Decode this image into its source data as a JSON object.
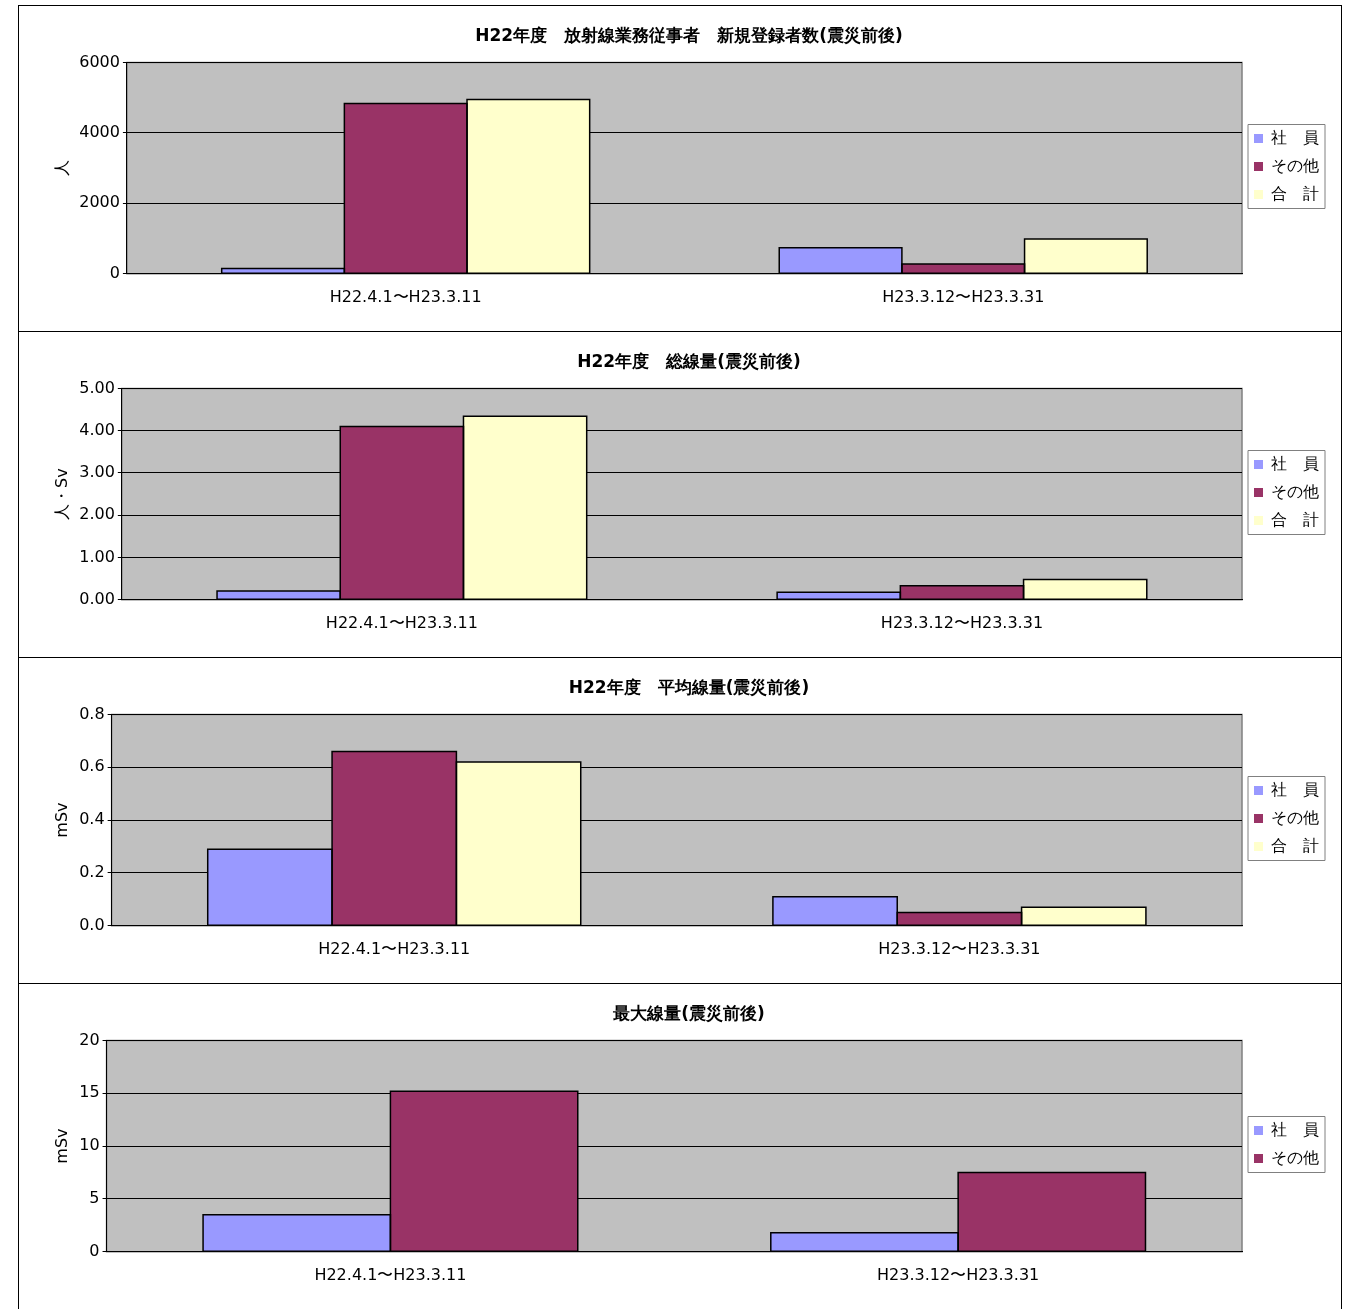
{
  "chart_data": [
    {
      "type": "bar",
      "title": "H22年度　放射線業務従事者　新規登録者数(震災前後)",
      "ylabel": "人",
      "categories": [
        "H22.4.1〜H23.3.11",
        "H23.3.12〜H23.3.31"
      ],
      "series": [
        {
          "name": "社　員",
          "color": "#9999ff",
          "values": [
            150,
            740
          ]
        },
        {
          "name": "その他",
          "color": "#993366",
          "values": [
            4830,
            280
          ]
        },
        {
          "name": "合　計",
          "color": "#ffffcc",
          "values": [
            4950,
            990
          ]
        }
      ],
      "ylim": [
        0,
        6000
      ],
      "yticks": [
        0,
        2000,
        4000,
        6000
      ],
      "grid": "y",
      "legend": "right"
    },
    {
      "type": "bar",
      "title": "H22年度　総線量(震災前後)",
      "ylabel": "人・Sv",
      "categories": [
        "H22.4.1〜H23.3.11",
        "H23.3.12〜H23.3.31"
      ],
      "series": [
        {
          "name": "社　員",
          "color": "#9999ff",
          "values": [
            0.21,
            0.18
          ]
        },
        {
          "name": "その他",
          "color": "#993366",
          "values": [
            4.1,
            0.33
          ]
        },
        {
          "name": "合　計",
          "color": "#ffffcc",
          "values": [
            4.34,
            0.48
          ]
        }
      ],
      "ylim": [
        0,
        5
      ],
      "yticks": [
        {
          "value": 0,
          "label": "0.00"
        },
        {
          "value": 1,
          "label": "1.00"
        },
        {
          "value": 2,
          "label": "2.00"
        },
        {
          "value": 3,
          "label": "3.00"
        },
        {
          "value": 4,
          "label": "4.00"
        },
        {
          "value": 5,
          "label": "5.00"
        }
      ],
      "grid": "y",
      "legend": "right"
    },
    {
      "type": "bar",
      "title": "H22年度　平均線量(震災前後)",
      "ylabel": "mSv",
      "categories": [
        "H22.4.1〜H23.3.11",
        "H23.3.12〜H23.3.31"
      ],
      "series": [
        {
          "name": "社　員",
          "color": "#9999ff",
          "values": [
            0.29,
            0.11
          ]
        },
        {
          "name": "その他",
          "color": "#993366",
          "values": [
            0.66,
            0.05
          ]
        },
        {
          "name": "合　計",
          "color": "#ffffcc",
          "values": [
            0.62,
            0.07
          ]
        }
      ],
      "ylim": [
        0,
        0.8
      ],
      "yticks": [
        {
          "value": 0,
          "label": "0.0"
        },
        0.2,
        0.4,
        0.6,
        0.8
      ],
      "grid": "y",
      "legend": "right"
    },
    {
      "type": "bar",
      "title": "最大線量(震災前後)",
      "ylabel": "mSv",
      "categories": [
        "H22.4.1〜H23.3.11",
        "H23.3.12〜H23.3.31"
      ],
      "series": [
        {
          "name": "社　員",
          "color": "#9999ff",
          "values": [
            3.5,
            1.8
          ]
        },
        {
          "name": "その他",
          "color": "#993366",
          "values": [
            15.2,
            7.5
          ]
        }
      ],
      "ylim": [
        0,
        20
      ],
      "yticks": [
        0,
        5,
        10,
        15,
        20
      ],
      "grid": "y",
      "legend": "right"
    }
  ]
}
